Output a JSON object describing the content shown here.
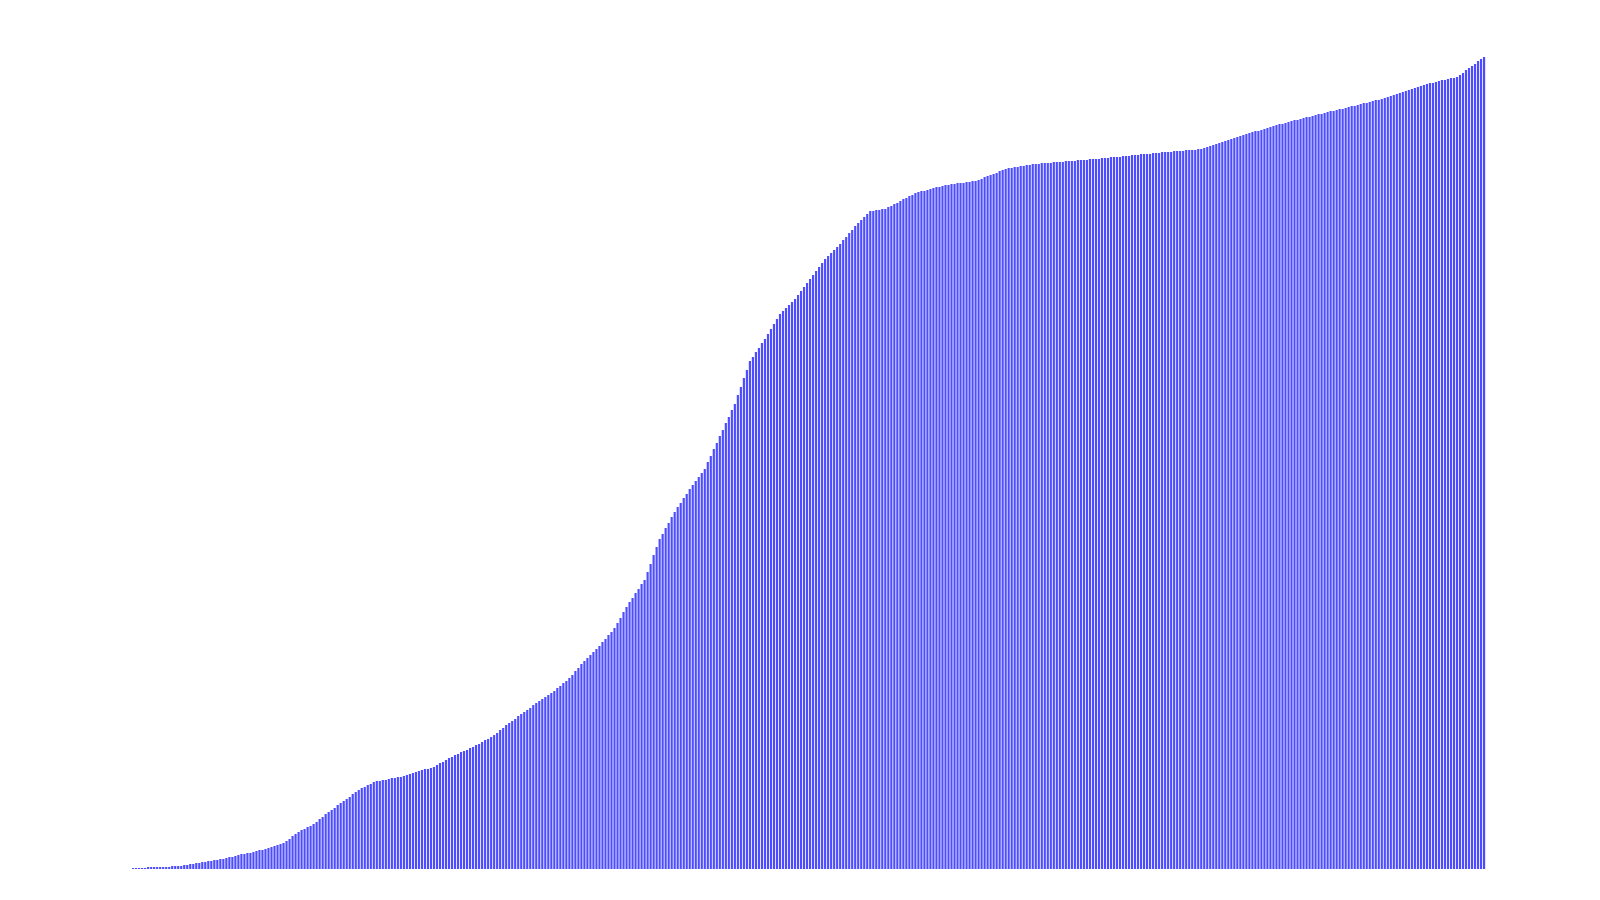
{
  "chart_data": {
    "type": "bar",
    "title": "",
    "xlabel": "",
    "ylabel": "",
    "ylim": [
      0,
      820
    ],
    "grid": false,
    "legend": "none",
    "bar_color": "#4d4dff",
    "keyframes": [
      [
        0,
        1
      ],
      [
        10,
        2
      ],
      [
        15,
        3
      ],
      [
        20,
        5
      ],
      [
        25,
        8
      ],
      [
        30,
        10
      ],
      [
        35,
        14
      ],
      [
        40,
        17
      ],
      [
        45,
        21
      ],
      [
        50,
        26
      ],
      [
        55,
        37
      ],
      [
        60,
        45
      ],
      [
        65,
        57
      ],
      [
        70,
        68
      ],
      [
        75,
        79
      ],
      [
        80,
        87
      ],
      [
        85,
        90
      ],
      [
        90,
        93
      ],
      [
        95,
        98
      ],
      [
        100,
        102
      ],
      [
        105,
        111
      ],
      [
        110,
        118
      ],
      [
        115,
        125
      ],
      [
        120,
        134
      ],
      [
        125,
        146
      ],
      [
        130,
        157
      ],
      [
        135,
        168
      ],
      [
        140,
        178
      ],
      [
        145,
        191
      ],
      [
        150,
        208
      ],
      [
        155,
        223
      ],
      [
        160,
        241
      ],
      [
        165,
        267
      ],
      [
        170,
        289
      ],
      [
        175,
        330
      ],
      [
        180,
        357
      ],
      [
        185,
        380
      ],
      [
        190,
        400
      ],
      [
        195,
        433
      ],
      [
        200,
        465
      ],
      [
        205,
        508
      ],
      [
        210,
        530
      ],
      [
        215,
        555
      ],
      [
        220,
        570
      ],
      [
        225,
        590
      ],
      [
        230,
        610
      ],
      [
        235,
        625
      ],
      [
        240,
        643
      ],
      [
        245,
        658
      ],
      [
        250,
        660
      ],
      [
        260,
        676
      ],
      [
        270,
        684
      ],
      [
        280,
        688
      ],
      [
        290,
        700
      ],
      [
        300,
        705
      ],
      [
        320,
        710
      ],
      [
        340,
        716
      ],
      [
        355,
        720
      ],
      [
        370,
        735
      ],
      [
        385,
        748
      ],
      [
        400,
        759
      ],
      [
        415,
        770
      ],
      [
        430,
        785
      ],
      [
        440,
        792
      ],
      [
        449,
        812
      ]
    ]
  }
}
